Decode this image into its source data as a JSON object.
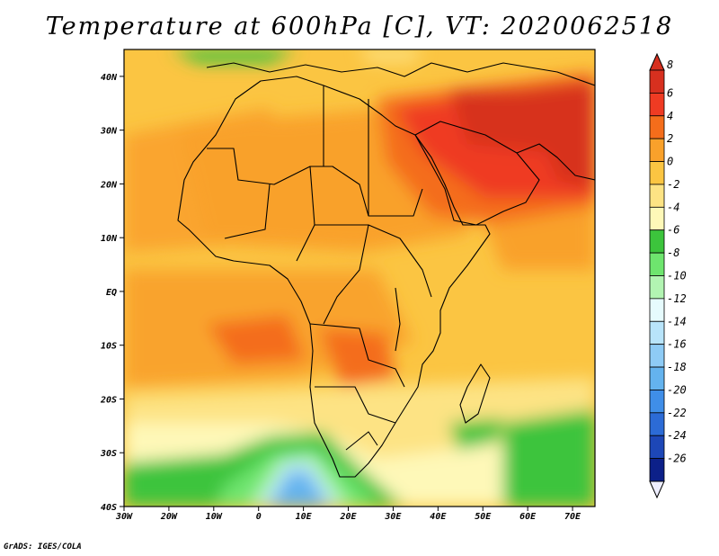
{
  "title": "Temperature at 600hPa [C], VT: 2020062518",
  "footer": "GrADS: IGES/COLA",
  "map": {
    "variable": "Temperature at 600hPa",
    "units": "C",
    "valid_time": "2020062518",
    "lon_range": [
      -30,
      75
    ],
    "lat_range": [
      -40,
      45
    ],
    "x_ticks": [
      "30W",
      "20W",
      "10W",
      "0",
      "10E",
      "20E",
      "30E",
      "40E",
      "50E",
      "60E",
      "70E"
    ],
    "y_ticks": [
      "40N",
      "30N",
      "20N",
      "10N",
      "EQ",
      "10S",
      "20S",
      "30S",
      "40S"
    ]
  },
  "colorbar": {
    "labels": [
      "8",
      "6",
      "4",
      "2",
      "0",
      "-2",
      "-4",
      "-6",
      "-8",
      "-10",
      "-12",
      "-14",
      "-16",
      "-18",
      "-20",
      "-22",
      "-24",
      "-26"
    ],
    "colors": [
      "#d7301f",
      "#ef3b23",
      "#f46d1b",
      "#f9a12b",
      "#fbc542",
      "#fde384",
      "#fef8b8",
      "#3cc43c",
      "#6ee56e",
      "#b2f4b2",
      "#e6fbfd",
      "#b8e4fa",
      "#8ecbf5",
      "#64b3ee",
      "#3f8ee8",
      "#2c6bd6",
      "#1d47b7",
      "#0c2089"
    ],
    "below_min_color": "#eeeeff"
  }
}
